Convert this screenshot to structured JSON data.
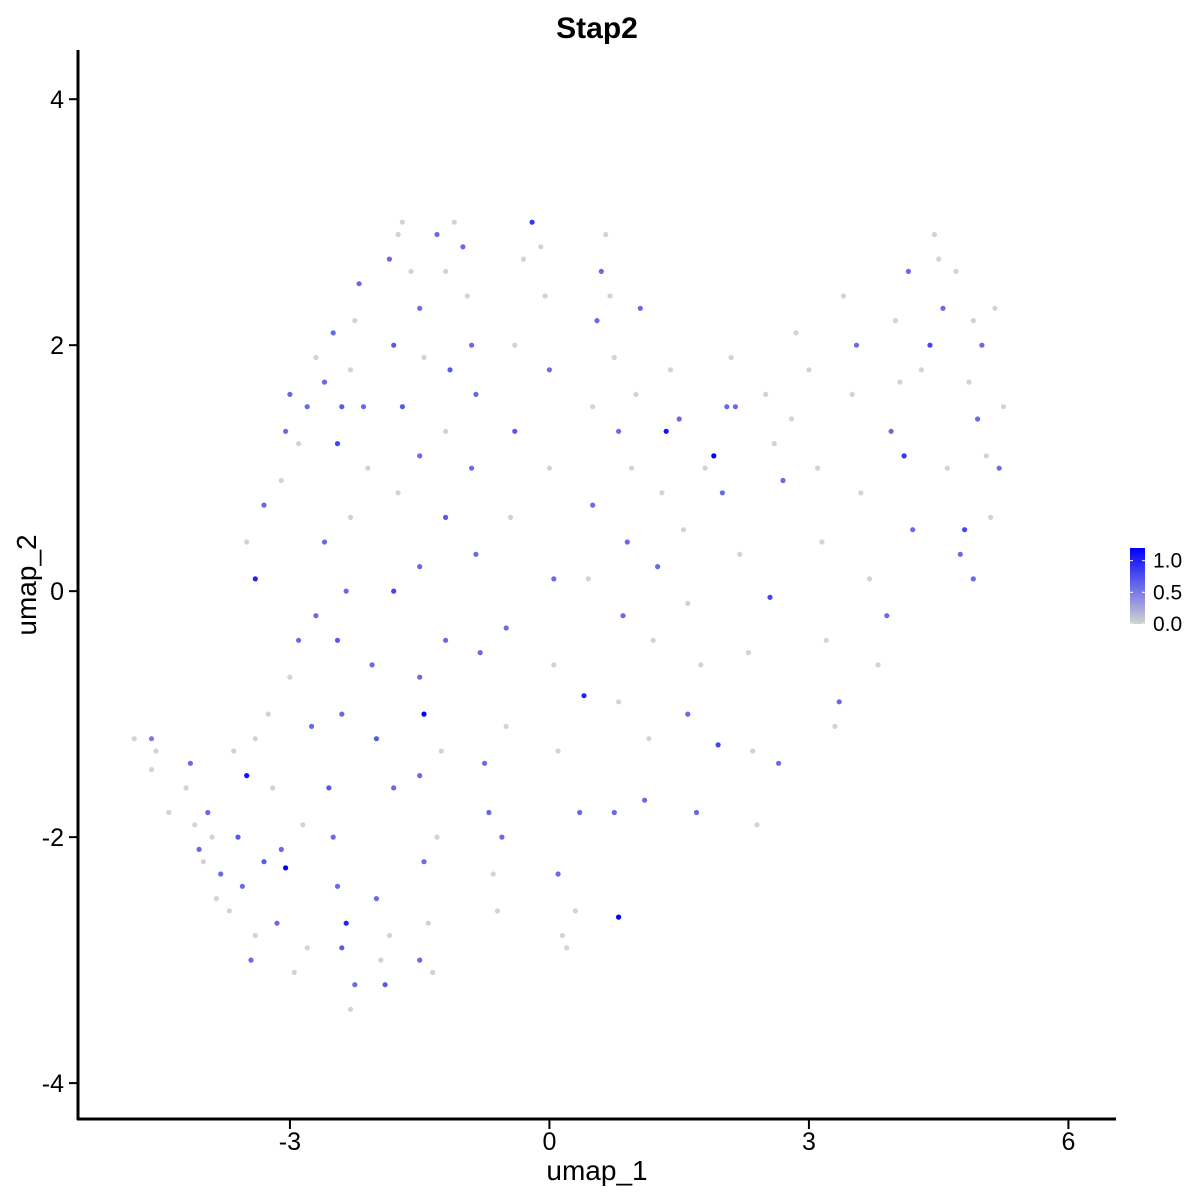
{
  "chart_data": {
    "type": "scatter",
    "title": "Stap2",
    "xlabel": "umap_1",
    "ylabel": "umap_2",
    "xlim": [
      -5.45,
      6.55
    ],
    "ylim": [
      -4.3,
      4.4
    ],
    "x_ticks": [
      -3,
      0,
      3,
      6
    ],
    "x_tick_labels": [
      "-3",
      "0",
      "3",
      "6"
    ],
    "y_ticks": [
      -4,
      -2,
      0,
      2,
      4
    ],
    "y_tick_labels": [
      "-4",
      "-2",
      "0",
      "2",
      "4"
    ],
    "grid": false,
    "legend": {
      "placement": "right",
      "type": "colorbar",
      "breaks": [
        0.0,
        0.5,
        1.0
      ],
      "labels": [
        "0.0",
        "0.5",
        "1.0"
      ],
      "min": 0.0,
      "max": 1.2,
      "low_color": "#d3d3d3",
      "high_color": "#0000ff"
    },
    "points": [
      [
        -4.8,
        -1.2,
        0
      ],
      [
        -4.6,
        -1.2,
        0.5
      ],
      [
        -4.6,
        -1.45,
        0
      ],
      [
        -4.55,
        -1.3,
        0
      ],
      [
        -4.4,
        -1.8,
        0
      ],
      [
        -4.2,
        -1.6,
        0
      ],
      [
        -4.15,
        -1.4,
        0.6
      ],
      [
        -4.1,
        -1.9,
        0
      ],
      [
        -4.05,
        -2.1,
        0.6
      ],
      [
        -4.0,
        -2.2,
        0
      ],
      [
        -3.95,
        -1.8,
        0.6
      ],
      [
        -3.9,
        -2.0,
        0
      ],
      [
        -3.85,
        -2.5,
        0
      ],
      [
        -3.8,
        -2.3,
        0.6
      ],
      [
        -3.7,
        -2.6,
        0
      ],
      [
        -3.65,
        -1.3,
        0
      ],
      [
        -3.6,
        -2.0,
        0.7
      ],
      [
        -3.55,
        -2.4,
        0.6
      ],
      [
        -3.5,
        -1.5,
        1.1
      ],
      [
        -3.45,
        -3.0,
        0.6
      ],
      [
        -3.4,
        -2.8,
        0
      ],
      [
        -3.4,
        -1.2,
        0
      ],
      [
        -3.3,
        -2.2,
        0.7
      ],
      [
        -3.25,
        -1.0,
        0
      ],
      [
        -3.2,
        -1.6,
        0
      ],
      [
        -3.15,
        -2.7,
        0.6
      ],
      [
        -3.1,
        -2.1,
        0.6
      ],
      [
        -3.05,
        -2.25,
        1.2
      ],
      [
        -3.0,
        -0.7,
        0
      ],
      [
        -2.95,
        -3.1,
        0
      ],
      [
        -2.9,
        -0.4,
        0.6
      ],
      [
        -2.85,
        -1.9,
        0
      ],
      [
        -2.8,
        -2.9,
        0
      ],
      [
        -3.4,
        0.1,
        1.0
      ],
      [
        -3.5,
        0.4,
        0
      ],
      [
        -3.3,
        0.7,
        0.6
      ],
      [
        -3.1,
        0.9,
        0
      ],
      [
        -3.05,
        1.3,
        0.6
      ],
      [
        -3.0,
        1.6,
        0.6
      ],
      [
        -2.9,
        1.2,
        0
      ],
      [
        -2.8,
        1.5,
        0.6
      ],
      [
        -2.7,
        1.9,
        0
      ],
      [
        -2.6,
        1.7,
        0.6
      ],
      [
        -2.5,
        2.1,
        0.6
      ],
      [
        -2.6,
        0.4,
        0.6
      ],
      [
        -2.7,
        -0.2,
        0.6
      ],
      [
        -2.75,
        -1.1,
        0.6
      ],
      [
        -2.55,
        -1.6,
        0.7
      ],
      [
        -2.5,
        -2.0,
        0.6
      ],
      [
        -2.45,
        -2.4,
        0.6
      ],
      [
        -2.4,
        -2.9,
        0.7
      ],
      [
        -2.35,
        -2.7,
        1.0
      ],
      [
        -2.3,
        -3.4,
        0
      ],
      [
        -2.25,
        -3.2,
        0.6
      ],
      [
        -2.4,
        -1.0,
        0.6
      ],
      [
        -2.45,
        -0.4,
        0.7
      ],
      [
        -2.35,
        -0.0,
        0.6
      ],
      [
        -2.3,
        0.6,
        0
      ],
      [
        -2.45,
        1.2,
        0.8
      ],
      [
        -2.4,
        1.5,
        0.7
      ],
      [
        -2.3,
        1.8,
        0
      ],
      [
        -2.25,
        2.2,
        0
      ],
      [
        -2.2,
        2.5,
        0.6
      ],
      [
        -2.15,
        1.5,
        0.6
      ],
      [
        -2.1,
        1.0,
        0
      ],
      [
        -2.05,
        -0.6,
        0.6
      ],
      [
        -2.0,
        -1.2,
        0.7
      ],
      [
        -2.0,
        -2.5,
        0.6
      ],
      [
        -1.95,
        -3.0,
        0
      ],
      [
        -1.9,
        -3.2,
        0.7
      ],
      [
        -1.85,
        -2.8,
        0
      ],
      [
        -1.8,
        -1.6,
        0.6
      ],
      [
        -1.8,
        0.0,
        0.8
      ],
      [
        -1.75,
        0.8,
        0
      ],
      [
        -1.7,
        1.5,
        0.7
      ],
      [
        -1.8,
        2.0,
        0.7
      ],
      [
        -1.85,
        2.7,
        0.6
      ],
      [
        -1.75,
        2.9,
        0
      ],
      [
        -1.7,
        3.0,
        0
      ],
      [
        -1.6,
        2.6,
        0
      ],
      [
        -1.5,
        2.3,
        0.6
      ],
      [
        -1.45,
        1.9,
        0
      ],
      [
        -1.5,
        1.1,
        0.6
      ],
      [
        -1.5,
        0.2,
        0.6
      ],
      [
        -1.5,
        -0.7,
        0.6
      ],
      [
        -1.45,
        -1.0,
        1.2
      ],
      [
        -1.5,
        -1.5,
        0.6
      ],
      [
        -1.45,
        -2.2,
        0.6
      ],
      [
        -1.4,
        -2.7,
        0
      ],
      [
        -1.5,
        -3.0,
        0.6
      ],
      [
        -1.35,
        -3.1,
        0
      ],
      [
        -1.3,
        -2.0,
        0
      ],
      [
        -1.25,
        -1.3,
        0
      ],
      [
        -1.2,
        -0.4,
        0.6
      ],
      [
        -1.2,
        0.6,
        0.7
      ],
      [
        -1.2,
        1.3,
        0
      ],
      [
        -1.15,
        1.8,
        0.7
      ],
      [
        -1.3,
        2.9,
        0.6
      ],
      [
        -1.2,
        2.6,
        0
      ],
      [
        -1.1,
        3.0,
        0
      ],
      [
        -1.0,
        2.8,
        0.6
      ],
      [
        -0.95,
        2.4,
        0
      ],
      [
        -0.9,
        2.0,
        0.6
      ],
      [
        -0.85,
        1.6,
        0.6
      ],
      [
        -0.9,
        1.0,
        0.6
      ],
      [
        -0.85,
        0.3,
        0.6
      ],
      [
        -0.8,
        -0.5,
        0.6
      ],
      [
        -0.75,
        -1.4,
        0.6
      ],
      [
        -0.7,
        -1.8,
        0.6
      ],
      [
        -0.65,
        -2.3,
        0
      ],
      [
        -0.6,
        -2.6,
        0
      ],
      [
        -0.55,
        -2.0,
        0.6
      ],
      [
        -0.5,
        -1.1,
        0
      ],
      [
        -0.5,
        -0.3,
        0.6
      ],
      [
        -0.45,
        0.6,
        0
      ],
      [
        -0.4,
        1.3,
        0.7
      ],
      [
        -0.4,
        2.0,
        0
      ],
      [
        -0.3,
        2.7,
        0
      ],
      [
        -0.2,
        3.0,
        0.9
      ],
      [
        -0.1,
        2.8,
        0
      ],
      [
        -0.05,
        2.4,
        0
      ],
      [
        0.0,
        1.8,
        0.6
      ],
      [
        0.0,
        1.0,
        0
      ],
      [
        0.05,
        0.1,
        0.6
      ],
      [
        0.05,
        -0.6,
        0
      ],
      [
        0.1,
        -1.3,
        0
      ],
      [
        0.1,
        -2.3,
        0.6
      ],
      [
        0.15,
        -2.8,
        0
      ],
      [
        0.2,
        -2.9,
        0
      ],
      [
        0.3,
        -2.6,
        0
      ],
      [
        0.35,
        -1.8,
        0.6
      ],
      [
        0.4,
        -0.85,
        1.0
      ],
      [
        0.45,
        0.1,
        0
      ],
      [
        0.5,
        0.7,
        0.6
      ],
      [
        0.5,
        1.5,
        0
      ],
      [
        0.55,
        2.2,
        0.6
      ],
      [
        0.6,
        2.6,
        0.6
      ],
      [
        0.65,
        2.9,
        0
      ],
      [
        0.7,
        2.4,
        0
      ],
      [
        0.75,
        1.9,
        0
      ],
      [
        0.8,
        1.3,
        0.6
      ],
      [
        0.8,
        -2.65,
        1.2
      ],
      [
        0.75,
        -1.8,
        0.6
      ],
      [
        0.8,
        -0.9,
        0
      ],
      [
        0.85,
        -0.2,
        0.6
      ],
      [
        0.9,
        0.4,
        0.6
      ],
      [
        0.95,
        1.0,
        0
      ],
      [
        1.0,
        1.6,
        0
      ],
      [
        1.05,
        2.3,
        0.6
      ],
      [
        1.1,
        -1.7,
        0.6
      ],
      [
        1.15,
        -1.2,
        0
      ],
      [
        1.2,
        -0.4,
        0
      ],
      [
        1.25,
        0.2,
        0.6
      ],
      [
        1.3,
        0.8,
        0
      ],
      [
        1.35,
        1.3,
        1.1
      ],
      [
        1.4,
        1.8,
        0
      ],
      [
        1.5,
        1.4,
        0.6
      ],
      [
        1.55,
        0.5,
        0
      ],
      [
        1.6,
        -0.1,
        0
      ],
      [
        1.6,
        -1.0,
        0.6
      ],
      [
        1.7,
        -1.8,
        0.6
      ],
      [
        1.75,
        -0.6,
        0
      ],
      [
        1.8,
        1.0,
        0
      ],
      [
        1.9,
        1.1,
        1.2
      ],
      [
        1.95,
        -1.25,
        0.8
      ],
      [
        2.0,
        0.8,
        0.6
      ],
      [
        2.05,
        1.5,
        0.6
      ],
      [
        2.1,
        1.9,
        0
      ],
      [
        2.15,
        1.5,
        0.6
      ],
      [
        2.2,
        0.3,
        0
      ],
      [
        2.3,
        -0.5,
        0
      ],
      [
        2.35,
        -1.3,
        0
      ],
      [
        2.4,
        -1.9,
        0
      ],
      [
        2.5,
        1.6,
        0
      ],
      [
        2.55,
        -0.05,
        0.8
      ],
      [
        2.6,
        1.2,
        0
      ],
      [
        2.65,
        -1.4,
        0.6
      ],
      [
        2.7,
        0.9,
        0.6
      ],
      [
        2.8,
        1.4,
        0
      ],
      [
        2.85,
        2.1,
        0
      ],
      [
        3.0,
        1.8,
        0
      ],
      [
        3.1,
        1.0,
        0
      ],
      [
        3.15,
        0.4,
        0
      ],
      [
        3.2,
        -0.4,
        0
      ],
      [
        3.3,
        -1.1,
        0
      ],
      [
        3.35,
        -0.9,
        0.6
      ],
      [
        3.4,
        2.4,
        0
      ],
      [
        3.5,
        1.6,
        0
      ],
      [
        3.55,
        2.0,
        0.6
      ],
      [
        3.6,
        0.8,
        0
      ],
      [
        3.7,
        0.1,
        0
      ],
      [
        3.8,
        -0.6,
        0
      ],
      [
        3.9,
        -0.2,
        0.6
      ],
      [
        3.95,
        1.3,
        0.6
      ],
      [
        4.0,
        2.2,
        0
      ],
      [
        4.05,
        1.7,
        0
      ],
      [
        4.1,
        1.1,
        0.9
      ],
      [
        4.15,
        2.6,
        0.6
      ],
      [
        4.2,
        0.5,
        0.6
      ],
      [
        4.3,
        1.8,
        0
      ],
      [
        4.4,
        2.0,
        0.8
      ],
      [
        4.45,
        2.9,
        0
      ],
      [
        4.5,
        2.7,
        0
      ],
      [
        4.55,
        2.3,
        0.6
      ],
      [
        4.6,
        1.0,
        0
      ],
      [
        4.7,
        2.6,
        0
      ],
      [
        4.75,
        0.3,
        0.6
      ],
      [
        4.8,
        0.5,
        0.8
      ],
      [
        4.85,
        1.7,
        0
      ],
      [
        4.9,
        2.2,
        0
      ],
      [
        4.95,
        1.4,
        0.6
      ],
      [
        5.0,
        2.0,
        0.6
      ],
      [
        5.05,
        1.1,
        0
      ],
      [
        5.1,
        0.6,
        0
      ],
      [
        5.15,
        2.3,
        0
      ],
      [
        5.2,
        1.0,
        0.6
      ],
      [
        5.25,
        1.5,
        0
      ],
      [
        4.9,
        0.1,
        0.6
      ]
    ]
  }
}
